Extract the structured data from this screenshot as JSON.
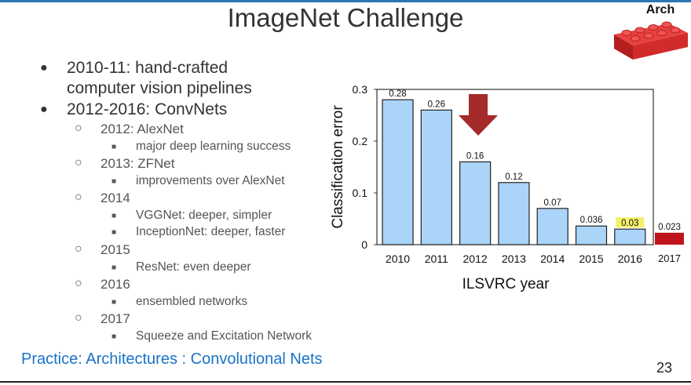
{
  "slide": {
    "title": "ImageNet Challenge",
    "badge": "Arch",
    "footer_link": "Practice: Architectures : Convolutional Nets",
    "page_number": "23",
    "accent_color": "#2e75b6",
    "lego_icon": "lego-brick-icon"
  },
  "bullets": {
    "b1_line1": "2010-11: hand-crafted",
    "b1_line2": "computer vision pipelines",
    "b2": "2012-2016: ConvNets",
    "y2012": "2012: AlexNet",
    "y2012_sub": "major deep learning success",
    "y2013": "2013: ZFNet",
    "y2013_sub": "improvements over AlexNet",
    "y2014": "2014",
    "y2014_sub1": "VGGNet: deeper, simpler",
    "y2014_sub2": "InceptionNet: deeper, faster",
    "y2015": "2015",
    "y2015_sub": "ResNet: even deeper",
    "y2016": "2016",
    "y2016_sub": "ensembled networks",
    "y2017": "2017",
    "y2017_sub": "Squeeze and Excitation Network",
    "marker_level1": "●",
    "marker_level2": "○",
    "marker_level3": "■"
  },
  "chart_data": {
    "type": "bar",
    "categories": [
      "2010",
      "2011",
      "2012",
      "2013",
      "2014",
      "2015",
      "2016"
    ],
    "values": [
      0.28,
      0.26,
      0.16,
      0.12,
      0.07,
      0.036,
      0.03
    ],
    "value_labels": [
      "0.28",
      "0.26",
      "0.16",
      "0.12",
      "0.07",
      "0.036",
      "0.03"
    ],
    "highlight_index": 6,
    "extra_category": "2017",
    "extra_value": 0.023,
    "extra_value_label": "0.023",
    "xlabel": "ILSVRC year",
    "ylabel": "Classification error",
    "ylim": [
      0,
      0.3
    ],
    "yticks": [
      0,
      0.1,
      0.2,
      0.3
    ],
    "ytick_labels": [
      "0",
      "0.1",
      "0.2",
      "0.3"
    ],
    "bar_color": "#aad4f8",
    "highlight_color": "#f5f06a",
    "extra_bar_color": "#c0141c",
    "arrow_color": "#a52a2a",
    "grid": false
  }
}
